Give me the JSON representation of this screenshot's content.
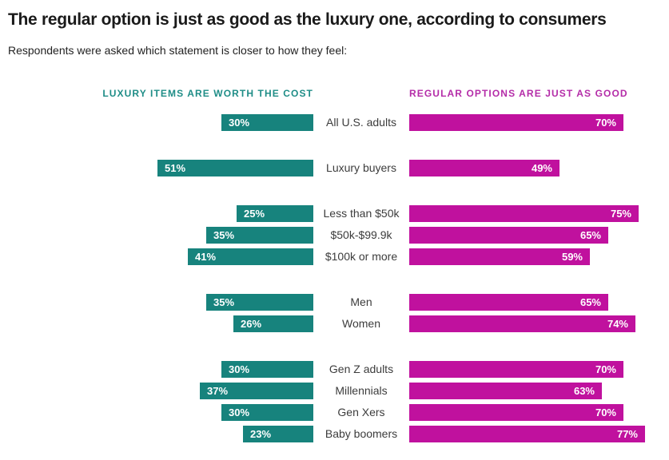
{
  "header": {
    "title": "The regular option is just as good as the luxury one, according to consumers",
    "subtitle": "Respondents were asked which statement is closer to how they feel:"
  },
  "colors": {
    "luxury_bar": "#17837D",
    "regular_bar": "#C0119E",
    "luxury_header_text": "#1F8D87",
    "regular_header_text": "#B42CA8",
    "title_text": "#1A1A1A",
    "subtitle_text": "#222222",
    "category_label_text": "#3C3C3C",
    "value_label_text": "#FFFFFF"
  },
  "chart_data": {
    "type": "bar",
    "variant": "diverging-horizontal",
    "unit": "%",
    "legend_position": "top",
    "axis_range_percent": [
      0,
      77
    ],
    "grid": false,
    "series": [
      {
        "name": "LUXURY ITEMS ARE WORTH THE COST",
        "color": "#17837D",
        "side": "left"
      },
      {
        "name": "REGULAR OPTIONS ARE JUST AS GOOD",
        "color": "#C0119E",
        "side": "right"
      }
    ],
    "groups": [
      {
        "rows": [
          {
            "label": "All U.S. adults",
            "luxury": 30,
            "regular": 70
          }
        ]
      },
      {
        "rows": [
          {
            "label": "Luxury buyers",
            "luxury": 51,
            "regular": 49
          }
        ]
      },
      {
        "rows": [
          {
            "label": "Less than $50k",
            "luxury": 25,
            "regular": 75
          },
          {
            "label": "$50k-$99.9k",
            "luxury": 35,
            "regular": 65
          },
          {
            "label": "$100k or more",
            "luxury": 41,
            "regular": 59
          }
        ]
      },
      {
        "rows": [
          {
            "label": "Men",
            "luxury": 35,
            "regular": 65
          },
          {
            "label": "Women",
            "luxury": 26,
            "regular": 74
          }
        ]
      },
      {
        "rows": [
          {
            "label": "Gen Z adults",
            "luxury": 30,
            "regular": 70
          },
          {
            "label": "Millennials",
            "luxury": 37,
            "regular": 63
          },
          {
            "label": "Gen Xers",
            "luxury": 30,
            "regular": 70
          },
          {
            "label": "Baby boomers",
            "luxury": 23,
            "regular": 77
          }
        ]
      }
    ]
  }
}
